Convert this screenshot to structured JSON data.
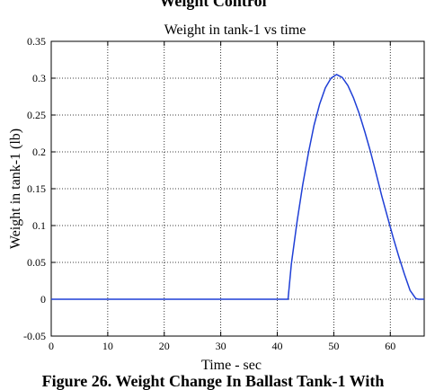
{
  "page": {
    "top_title": "Weight Control",
    "bottom_caption": "Figure 26. Weight Change In Ballast Tank-1 With"
  },
  "chart_data": {
    "type": "line",
    "title": "Weight in tank-1 vs time",
    "xlabel": "Time - sec",
    "ylabel": "Weight in tank-1 (lb)",
    "xlim": [
      0,
      66
    ],
    "ylim": [
      -0.05,
      0.35
    ],
    "xticks": [
      0,
      10,
      20,
      30,
      40,
      50,
      60
    ],
    "yticks": [
      -0.05,
      0,
      0.05,
      0.1,
      0.15,
      0.2,
      0.25,
      0.3,
      0.35
    ],
    "ytick_labels": [
      "-0.05",
      "0",
      "0.05",
      "0.1",
      "0.15",
      "0.2",
      "0.25",
      "0.3",
      "0.35"
    ],
    "grid": true,
    "line_color": "#1f3fd6",
    "series": [
      {
        "x": [
          0,
          41.9,
          42.5,
          43.5,
          44.5,
          45.5,
          46.5,
          47.5,
          48.5,
          49.5,
          50.5,
          51.5,
          52.5,
          53.5,
          54.5,
          55.5,
          56.5,
          57.5,
          58.5,
          59.5,
          60.5,
          61.5,
          62.5,
          63.5,
          64.5,
          65,
          66
        ],
        "y": [
          0,
          0,
          0.048,
          0.105,
          0.155,
          0.198,
          0.236,
          0.265,
          0.287,
          0.3,
          0.305,
          0.301,
          0.29,
          0.273,
          0.252,
          0.227,
          0.2,
          0.17,
          0.14,
          0.112,
          0.084,
          0.058,
          0.034,
          0.012,
          0.001,
          0,
          0
        ]
      }
    ]
  }
}
